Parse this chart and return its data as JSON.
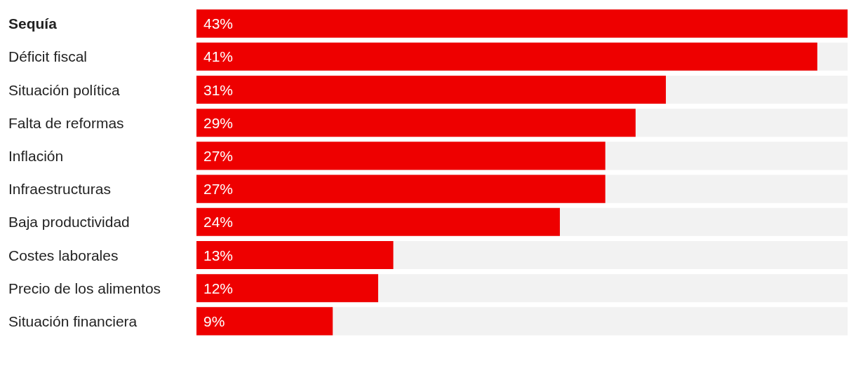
{
  "chart_data": {
    "type": "bar",
    "orientation": "horizontal",
    "categories": [
      "Sequía",
      "Déficit fiscal",
      "Situación política",
      "Falta de reformas",
      "Inflación",
      "Infraestructuras",
      "Baja productividad",
      "Costes laborales",
      "Precio de los alimentos",
      "Situación financiera"
    ],
    "values": [
      43,
      41,
      31,
      29,
      27,
      27,
      24,
      13,
      12,
      9
    ],
    "value_labels": [
      "43%",
      "41%",
      "31%",
      "29%",
      "27%",
      "27%",
      "24%",
      "13%",
      "12%",
      "9%"
    ],
    "color": "#ee0000",
    "tick_labels": "y"
  }
}
